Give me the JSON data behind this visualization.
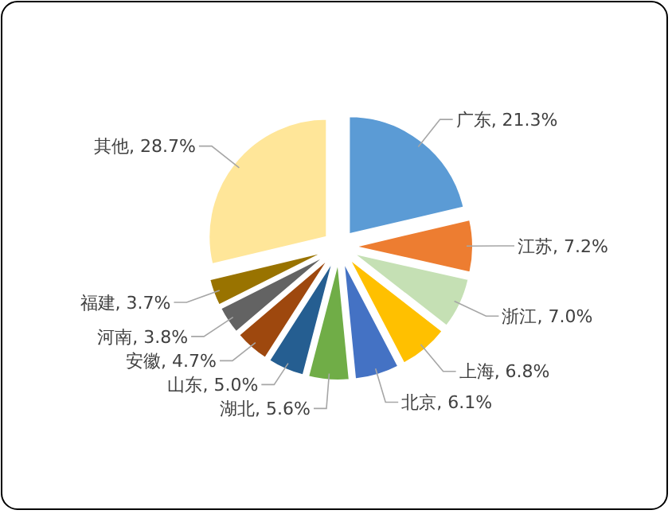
{
  "chart_data": {
    "type": "pie",
    "categories": [
      "广东",
      "江苏",
      "浙江",
      "上海",
      "北京",
      "湖北",
      "山东",
      "安徽",
      "河南",
      "福建",
      "其他"
    ],
    "values": [
      21.3,
      7.2,
      7.0,
      6.8,
      6.1,
      5.6,
      5.0,
      4.7,
      3.8,
      3.7,
      28.7
    ],
    "colors": [
      "#5b9bd5",
      "#ed7d31",
      "#c5e0b4",
      "#ffc000",
      "#4472c4",
      "#70ad47",
      "#255e91",
      "#9e480e",
      "#636363",
      "#997300",
      "#ffe699"
    ],
    "value_labels": [
      "21.3%",
      "7.2%",
      "7.0%",
      "6.8%",
      "6.1%",
      "5.6%",
      "5.0%",
      "4.7%",
      "3.8%",
      "3.7%",
      "28.7%"
    ]
  }
}
